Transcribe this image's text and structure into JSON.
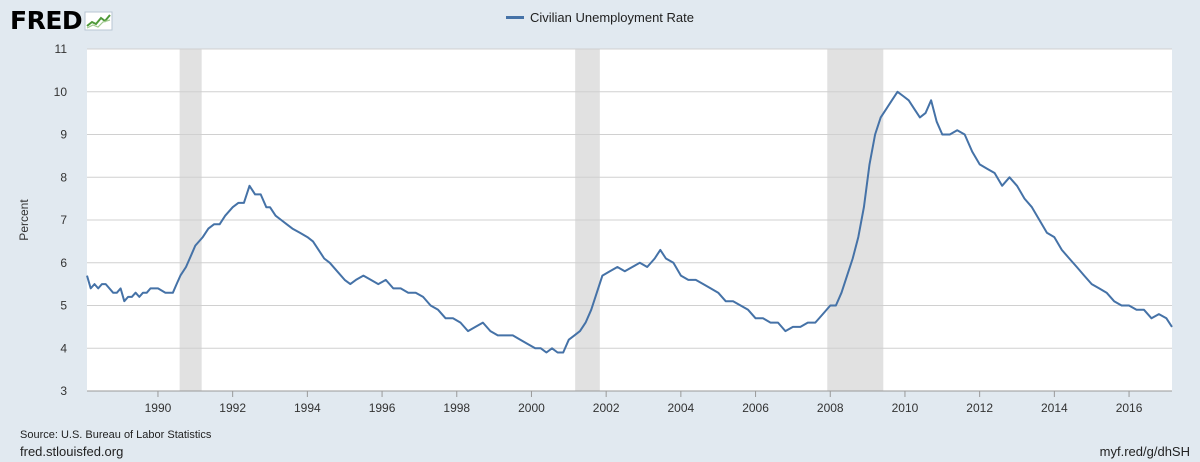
{
  "logo": {
    "text": "FRED"
  },
  "colors": {
    "series": "#4572a7",
    "recession": "#e1e1e1",
    "plot_bg": "#ffffff",
    "page_bg": "#e1e9f0",
    "grid": "#d0d0d0"
  },
  "source_text": "Source: U.S. Bureau of Labor Statistics",
  "footer": {
    "left": "fred.stlouisfed.org",
    "right": "myf.red/g/dhSH"
  },
  "chart_data": {
    "type": "line",
    "title": "",
    "xlabel": "",
    "ylabel": "Percent",
    "xlim": [
      1988.1,
      2017.15
    ],
    "ylim": [
      3,
      11
    ],
    "y_ticks": [
      3,
      4,
      5,
      6,
      7,
      8,
      9,
      10,
      11
    ],
    "x_ticks": [
      1990,
      1992,
      1994,
      1996,
      1998,
      2000,
      2002,
      2004,
      2006,
      2008,
      2010,
      2012,
      2014,
      2016
    ],
    "grid": "horizontal",
    "legend_position": "top-center",
    "recessions": [
      [
        1990.58,
        1991.17
      ],
      [
        2001.17,
        2001.83
      ],
      [
        2007.92,
        2009.42
      ]
    ],
    "series": [
      {
        "name": "Civilian Unemployment Rate",
        "color": "#4572a7",
        "x": [
          1988.1,
          1988.2,
          1988.3,
          1988.4,
          1988.5,
          1988.6,
          1988.7,
          1988.8,
          1988.9,
          1989.0,
          1989.1,
          1989.2,
          1989.3,
          1989.4,
          1989.5,
          1989.6,
          1989.7,
          1989.8,
          1989.9,
          1990.0,
          1990.2,
          1990.4,
          1990.5,
          1990.6,
          1990.75,
          1990.9,
          1991.0,
          1991.2,
          1991.35,
          1991.5,
          1991.65,
          1991.8,
          1992.0,
          1992.15,
          1992.3,
          1992.45,
          1992.6,
          1992.75,
          1992.9,
          1993.0,
          1993.15,
          1993.3,
          1993.45,
          1993.6,
          1993.8,
          1994.0,
          1994.15,
          1994.3,
          1994.45,
          1994.6,
          1994.8,
          1995.0,
          1995.15,
          1995.3,
          1995.5,
          1995.7,
          1995.9,
          1996.1,
          1996.3,
          1996.5,
          1996.7,
          1996.9,
          1997.1,
          1997.3,
          1997.5,
          1997.7,
          1997.9,
          1998.1,
          1998.3,
          1998.5,
          1998.7,
          1998.9,
          1999.1,
          1999.3,
          1999.5,
          1999.7,
          1999.9,
          2000.1,
          2000.25,
          2000.4,
          2000.55,
          2000.7,
          2000.85,
          2001.0,
          2001.15,
          2001.3,
          2001.45,
          2001.6,
          2001.75,
          2001.9,
          2002.1,
          2002.3,
          2002.5,
          2002.7,
          2002.9,
          2003.1,
          2003.3,
          2003.45,
          2003.6,
          2003.8,
          2004.0,
          2004.2,
          2004.4,
          2004.6,
          2004.8,
          2005.0,
          2005.2,
          2005.4,
          2005.6,
          2005.8,
          2006.0,
          2006.2,
          2006.4,
          2006.6,
          2006.8,
          2007.0,
          2007.2,
          2007.4,
          2007.6,
          2007.8,
          2008.0,
          2008.15,
          2008.3,
          2008.45,
          2008.6,
          2008.75,
          2008.9,
          2009.05,
          2009.2,
          2009.35,
          2009.5,
          2009.65,
          2009.8,
          2009.95,
          2010.1,
          2010.25,
          2010.4,
          2010.55,
          2010.7,
          2010.85,
          2011.0,
          2011.2,
          2011.4,
          2011.6,
          2011.8,
          2012.0,
          2012.2,
          2012.4,
          2012.6,
          2012.8,
          2013.0,
          2013.2,
          2013.4,
          2013.6,
          2013.8,
          2014.0,
          2014.2,
          2014.4,
          2014.6,
          2014.8,
          2015.0,
          2015.2,
          2015.4,
          2015.6,
          2015.8,
          2016.0,
          2016.2,
          2016.4,
          2016.6,
          2016.8,
          2017.0,
          2017.15
        ],
        "values": [
          5.7,
          5.4,
          5.5,
          5.4,
          5.5,
          5.5,
          5.4,
          5.3,
          5.3,
          5.4,
          5.1,
          5.2,
          5.2,
          5.3,
          5.2,
          5.3,
          5.3,
          5.4,
          5.4,
          5.4,
          5.3,
          5.3,
          5.5,
          5.7,
          5.9,
          6.2,
          6.4,
          6.6,
          6.8,
          6.9,
          6.9,
          7.1,
          7.3,
          7.4,
          7.4,
          7.8,
          7.6,
          7.6,
          7.3,
          7.3,
          7.1,
          7.0,
          6.9,
          6.8,
          6.7,
          6.6,
          6.5,
          6.3,
          6.1,
          6.0,
          5.8,
          5.6,
          5.5,
          5.6,
          5.7,
          5.6,
          5.5,
          5.6,
          5.4,
          5.4,
          5.3,
          5.3,
          5.2,
          5.0,
          4.9,
          4.7,
          4.7,
          4.6,
          4.4,
          4.5,
          4.6,
          4.4,
          4.3,
          4.3,
          4.3,
          4.2,
          4.1,
          4.0,
          4.0,
          3.9,
          4.0,
          3.9,
          3.9,
          4.2,
          4.3,
          4.4,
          4.6,
          4.9,
          5.3,
          5.7,
          5.8,
          5.9,
          5.8,
          5.9,
          6.0,
          5.9,
          6.1,
          6.3,
          6.1,
          6.0,
          5.7,
          5.6,
          5.6,
          5.5,
          5.4,
          5.3,
          5.1,
          5.1,
          5.0,
          4.9,
          4.7,
          4.7,
          4.6,
          4.6,
          4.4,
          4.5,
          4.5,
          4.6,
          4.6,
          4.8,
          5.0,
          5.0,
          5.3,
          5.7,
          6.1,
          6.6,
          7.3,
          8.3,
          9.0,
          9.4,
          9.6,
          9.8,
          10.0,
          9.9,
          9.8,
          9.6,
          9.4,
          9.5,
          9.8,
          9.3,
          9.0,
          9.0,
          9.1,
          9.0,
          8.6,
          8.3,
          8.2,
          8.1,
          7.8,
          8.0,
          7.8,
          7.5,
          7.3,
          7.0,
          6.7,
          6.6,
          6.3,
          6.1,
          5.9,
          5.7,
          5.5,
          5.4,
          5.3,
          5.1,
          5.0,
          5.0,
          4.9,
          4.9,
          4.7,
          4.8,
          4.7,
          4.5
        ]
      }
    ]
  }
}
